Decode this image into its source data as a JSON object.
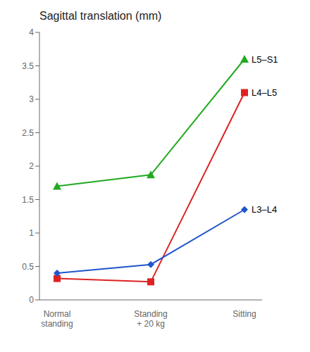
{
  "chart_data": {
    "type": "line",
    "title": "Sagittal translation (mm)",
    "categories": [
      "Normal\nstanding",
      "Standing\n+ 20 kg",
      "Sitting"
    ],
    "series": [
      {
        "name": "L5–S1",
        "color": "#22aa22",
        "marker": "triangle",
        "values": [
          1.7,
          1.87,
          3.6
        ]
      },
      {
        "name": "L4–L5",
        "color": "#dd2222",
        "marker": "square",
        "values": [
          0.32,
          0.27,
          3.1
        ]
      },
      {
        "name": "L3–L4",
        "color": "#2255cc",
        "marker": "diamond",
        "values": [
          0.4,
          0.53,
          1.35
        ]
      }
    ],
    "ylim": [
      0,
      4
    ],
    "yticks": [
      0,
      0.5,
      1,
      1.5,
      2,
      2.5,
      3,
      3.5,
      4
    ],
    "grid": false
  }
}
